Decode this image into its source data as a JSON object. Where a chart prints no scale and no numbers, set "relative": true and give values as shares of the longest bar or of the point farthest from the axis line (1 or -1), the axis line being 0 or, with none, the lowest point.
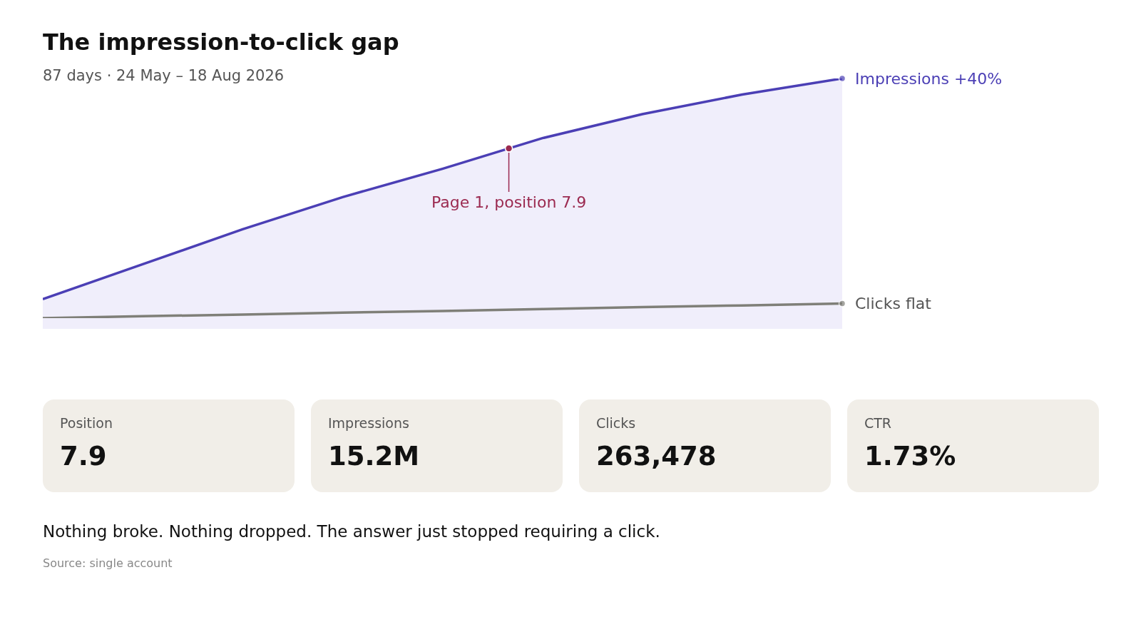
{
  "chart_data": [
    {
      "type": "line",
      "title": "The impression-to-click gap",
      "subtitle": "87 days · 24 May – 18 Aug 2026",
      "relative": true,
      "grid": false,
      "legend": false,
      "marker": "none",
      "line_style": "solid",
      "categories": [
        null,
        null,
        null,
        null,
        null,
        null,
        null,
        null,
        null
      ],
      "series": [
        {
          "name": "Impressions +40%",
          "type": "area",
          "color": "#4b3fb5",
          "values": [
            0.079,
            0.225,
            0.371,
            0.505,
            0.623,
            0.751,
            0.851,
            0.933,
            1.0
          ]
        },
        {
          "name": "Clicks flat",
          "type": "line",
          "color": "#7f7f78",
          "values": [
            0,
            0.008,
            0.015,
            0.023,
            0.03,
            0.038,
            0.046,
            0.053,
            0.061
          ]
        }
      ],
      "annotations": [
        {
          "text": "Page 1, position 7.9",
          "y": 0.708
        },
        "Nothing broke. Nothing dropped. The answer just stopped requiring a click.",
        "Source: single account"
      ]
    },
    {
      "type": "other",
      "categories": [
        "Position",
        "Impressions",
        "Clicks",
        "CTR"
      ],
      "value_labels": [
        "7.9",
        "15.2M",
        "263,478",
        "1.73%"
      ]
    }
  ]
}
